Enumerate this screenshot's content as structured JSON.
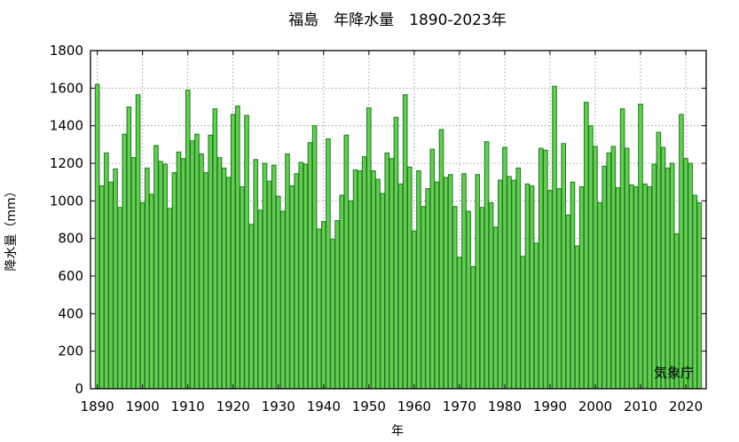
{
  "chart_data": {
    "type": "bar",
    "title": "福島　年降水量　1890-2023年",
    "xlabel": "年",
    "ylabel": "降水量（mm）",
    "credit": "気象庁",
    "ylim": [
      0,
      1800
    ],
    "yticks": [
      0,
      200,
      400,
      600,
      800,
      1000,
      1200,
      1400,
      1600,
      1800
    ],
    "xticks": [
      1890,
      1900,
      1910,
      1920,
      1930,
      1940,
      1950,
      1960,
      1970,
      1980,
      1990,
      2000,
      2010,
      2020
    ],
    "xlim": [
      1888.5,
      2024.5
    ],
    "grid": true,
    "bar_color": "#66cc55",
    "bar_edge_color": "#1a7a1a",
    "years": [
      1890,
      1891,
      1892,
      1893,
      1894,
      1895,
      1896,
      1897,
      1898,
      1899,
      1900,
      1901,
      1902,
      1903,
      1904,
      1905,
      1906,
      1907,
      1908,
      1909,
      1910,
      1911,
      1912,
      1913,
      1914,
      1915,
      1916,
      1917,
      1918,
      1919,
      1920,
      1921,
      1922,
      1923,
      1924,
      1925,
      1926,
      1927,
      1928,
      1929,
      1930,
      1931,
      1932,
      1933,
      1934,
      1935,
      1936,
      1937,
      1938,
      1939,
      1940,
      1941,
      1942,
      1943,
      1944,
      1945,
      1946,
      1947,
      1948,
      1949,
      1950,
      1951,
      1952,
      1953,
      1954,
      1955,
      1956,
      1957,
      1958,
      1959,
      1960,
      1961,
      1962,
      1963,
      1964,
      1965,
      1966,
      1967,
      1968,
      1969,
      1970,
      1971,
      1972,
      1973,
      1974,
      1975,
      1976,
      1977,
      1978,
      1979,
      1980,
      1981,
      1982,
      1983,
      1984,
      1985,
      1986,
      1987,
      1988,
      1989,
      1990,
      1991,
      1992,
      1993,
      1994,
      1995,
      1996,
      1997,
      1998,
      1999,
      2000,
      2001,
      2002,
      2003,
      2004,
      2005,
      2006,
      2007,
      2008,
      2009,
      2010,
      2011,
      2012,
      2013,
      2014,
      2015,
      2016,
      2017,
      2018,
      2019,
      2020,
      2021,
      2022,
      2023
    ],
    "values": [
      1620,
      1080,
      1255,
      1100,
      1170,
      965,
      1355,
      1500,
      1230,
      1565,
      990,
      1175,
      1035,
      1295,
      1210,
      1195,
      960,
      1150,
      1260,
      1225,
      1590,
      1320,
      1355,
      1250,
      1150,
      1350,
      1490,
      1230,
      1175,
      1125,
      1460,
      1505,
      1075,
      1455,
      875,
      1220,
      950,
      1200,
      1105,
      1190,
      1025,
      945,
      1250,
      1080,
      1145,
      1205,
      1195,
      1310,
      1400,
      850,
      890,
      1330,
      795,
      895,
      1030,
      1350,
      1000,
      1165,
      1160,
      1235,
      1495,
      1160,
      1115,
      1040,
      1255,
      1225,
      1445,
      1090,
      1565,
      1180,
      840,
      1160,
      970,
      1065,
      1275,
      1100,
      1380,
      1125,
      1140,
      970,
      700,
      1145,
      945,
      650,
      1140,
      965,
      1315,
      990,
      860,
      1110,
      1285,
      1130,
      1110,
      1175,
      705,
      1090,
      1080,
      775,
      1280,
      1270,
      1055,
      1610,
      1065,
      1305,
      925,
      1100,
      760,
      1075,
      1525,
      1400,
      1290,
      990,
      1185,
      1255,
      1290,
      1070,
      1490,
      1280,
      1085,
      1075,
      1515,
      1090,
      1075,
      1195,
      1365,
      1285,
      1175,
      1200,
      825,
      1460,
      1225,
      1200,
      1030,
      990
    ]
  }
}
